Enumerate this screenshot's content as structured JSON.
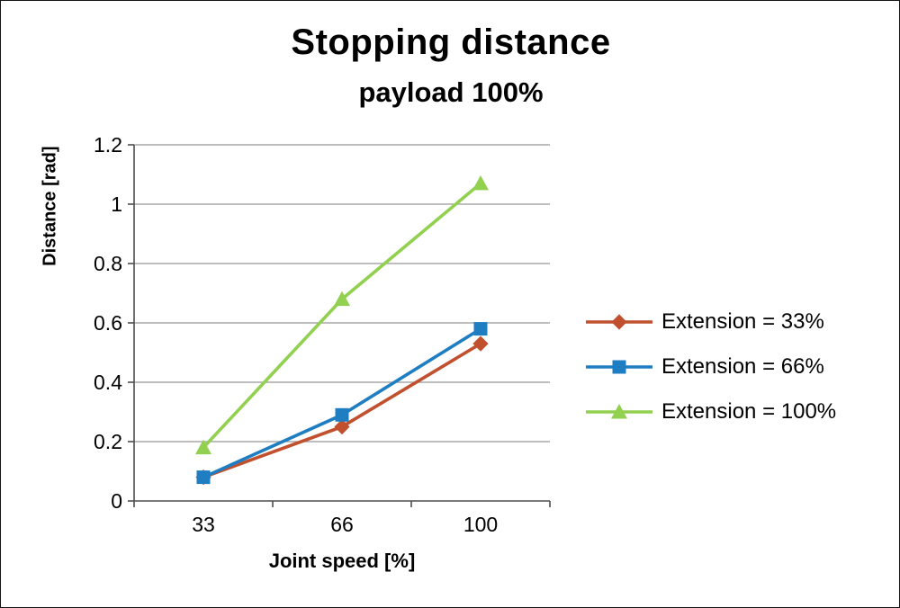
{
  "chart_data": {
    "type": "line",
    "title": "Stopping distance",
    "subtitle": "payload 100%",
    "xlabel": "Joint speed [%]",
    "ylabel": "Distance [rad]",
    "categories": [
      33,
      66,
      100
    ],
    "x_tick_labels": [
      "33",
      "66",
      "100"
    ],
    "y_ticks": [
      0,
      0.2,
      0.4,
      0.6,
      0.8,
      1,
      1.2
    ],
    "y_tick_labels": [
      "0",
      "0.2",
      "0.4",
      "0.6",
      "0.8",
      "1",
      "1.2"
    ],
    "ylim": [
      0,
      1.2
    ],
    "grid": "horizontal",
    "legend_position": "right",
    "colors": {
      "gridline": "#969696",
      "axis": "#4d4d4d",
      "text": "#000000"
    },
    "series": [
      {
        "name": "Extension = 33%",
        "color": "#C1502E",
        "marker": "diamond",
        "values": [
          0.08,
          0.25,
          0.53
        ]
      },
      {
        "name": "Extension = 66%",
        "color": "#1F7EC2",
        "marker": "square",
        "values": [
          0.08,
          0.29,
          0.58
        ]
      },
      {
        "name": "Extension = 100%",
        "color": "#92D050",
        "marker": "triangle",
        "values": [
          0.18,
          0.68,
          1.07
        ]
      }
    ]
  }
}
